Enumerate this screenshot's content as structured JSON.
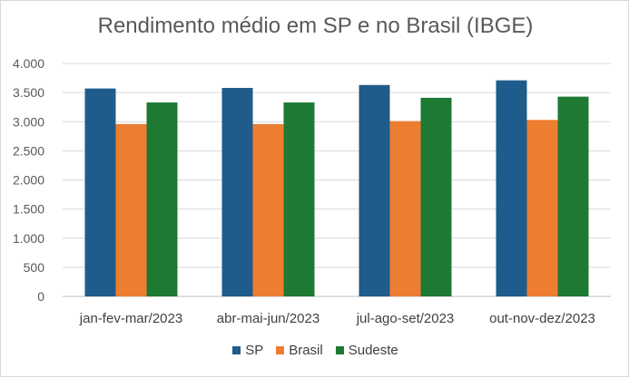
{
  "chart_data": {
    "type": "bar",
    "title": "Rendimento médio em SP e no Brasil (IBGE)",
    "xlabel": "",
    "ylabel": "",
    "categories": [
      "jan-fev-mar/2023",
      "abr-mai-jun/2023",
      "jul-ago-set/2023",
      "out-nov-dez/2023"
    ],
    "ylim": [
      0,
      4000
    ],
    "yticks": [
      0,
      500,
      1000,
      1500,
      2000,
      2500,
      3000,
      3500,
      4000
    ],
    "ytick_labels": [
      "0",
      "500",
      "1.000",
      "1.500",
      "2.000",
      "2.500",
      "3.000",
      "3.500",
      "4.000"
    ],
    "grid": true,
    "legend_position": "bottom",
    "series": [
      {
        "name": "SP",
        "color": "#1f5c8b",
        "values": [
          3570,
          3580,
          3630,
          3710
        ]
      },
      {
        "name": "Brasil",
        "color": "#ed7d31",
        "values": [
          2960,
          2960,
          3010,
          3030
        ]
      },
      {
        "name": "Sudeste",
        "color": "#1e7a32",
        "values": [
          3330,
          3330,
          3410,
          3430
        ]
      }
    ]
  }
}
